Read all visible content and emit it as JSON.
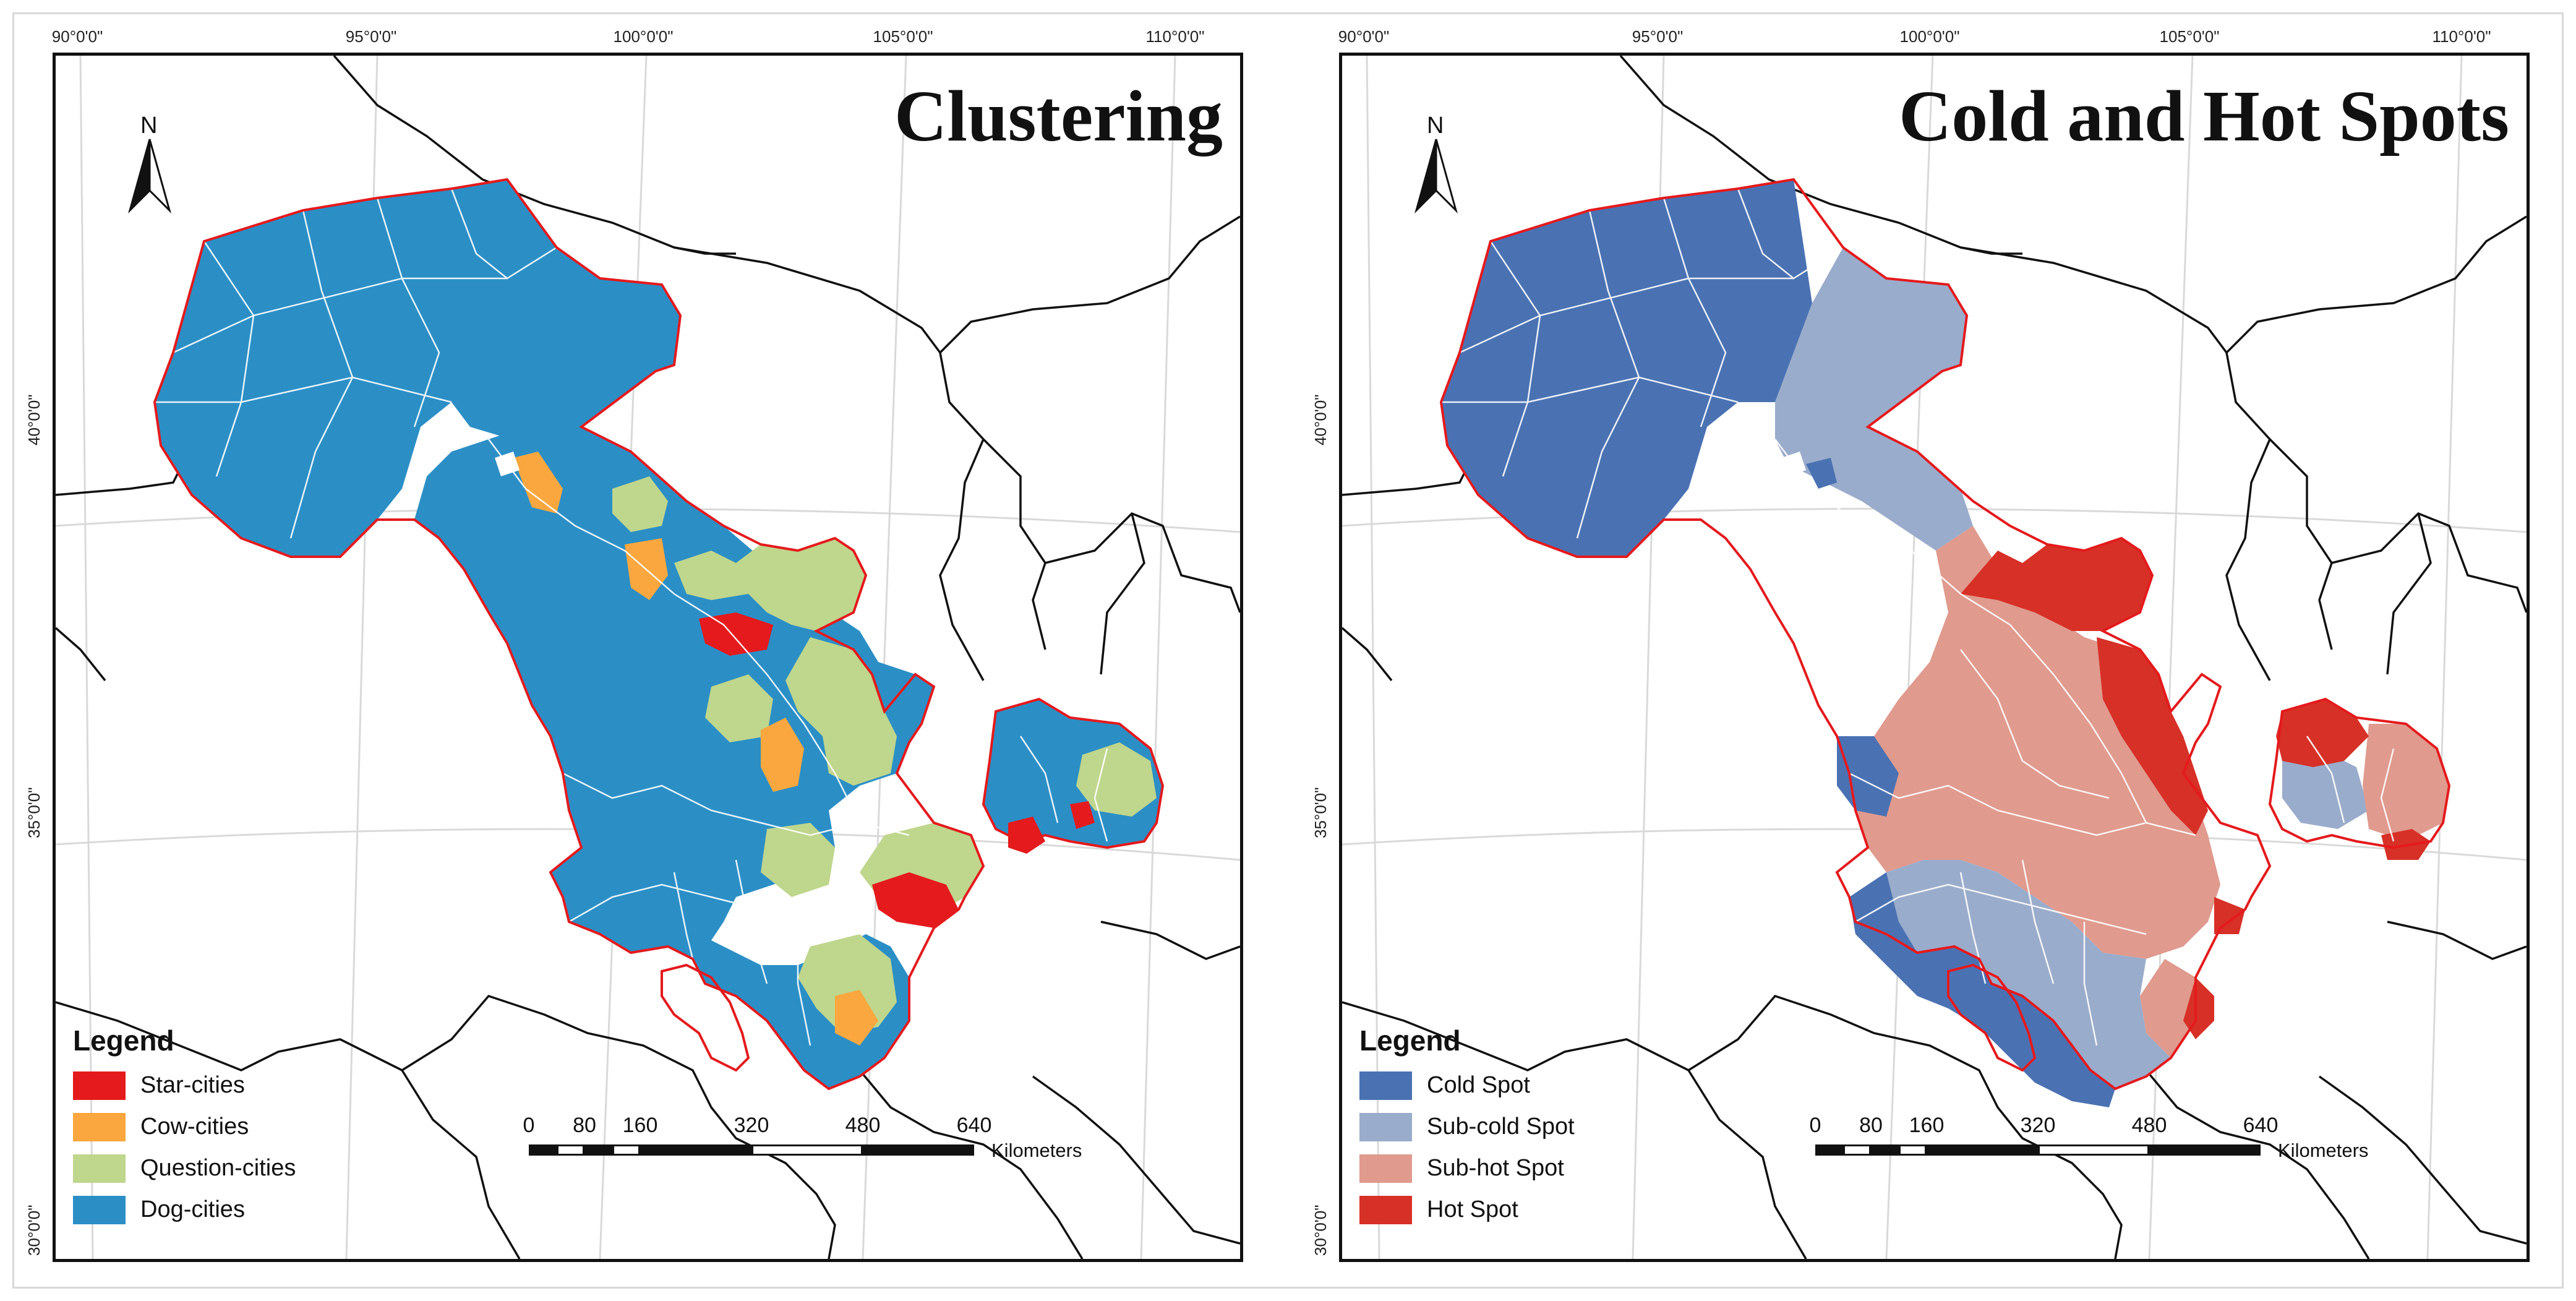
{
  "coordinates": {
    "longitudes": [
      "90°0'0\"",
      "95°0'0\"",
      "100°0'0\"",
      "105°0'0\"",
      "110°0'0\""
    ],
    "latitudes": [
      "40°0'0\"",
      "35°0'0\"",
      "30°0'0\""
    ]
  },
  "panels": [
    {
      "title": "Clustering",
      "north_label": "N",
      "legend": {
        "title": "Legend",
        "items": [
          {
            "label": "Star-cities",
            "color": "#e41a1c"
          },
          {
            "label": "Cow-cities",
            "color": "#f9a73e"
          },
          {
            "label": "Question-cities",
            "color": "#bfd68d"
          },
          {
            "label": "Dog-cities",
            "color": "#2b8fc6"
          }
        ]
      },
      "scale": {
        "ticks": [
          "0",
          "80",
          "160",
          "320",
          "480",
          "640"
        ],
        "unit": "Kilometers"
      }
    },
    {
      "title": "Cold and Hot Spots",
      "north_label": "N",
      "legend": {
        "title": "Legend",
        "items": [
          {
            "label": "Cold Spot",
            "color": "#4a72b3"
          },
          {
            "label": "Sub-cold Spot",
            "color": "#9aaccb"
          },
          {
            "label": "Sub-hot Spot",
            "color": "#e09a8e"
          },
          {
            "label": "Hot Spot",
            "color": "#d73027"
          }
        ]
      },
      "scale": {
        "ticks": [
          "0",
          "80",
          "160",
          "320",
          "480",
          "640"
        ],
        "unit": "Kilometers"
      }
    }
  ],
  "colors": {
    "region_outline": "#e41a1c",
    "district_lines": "#ffffff",
    "boundaries": "#111111",
    "graticule": "#d9d9d9"
  }
}
